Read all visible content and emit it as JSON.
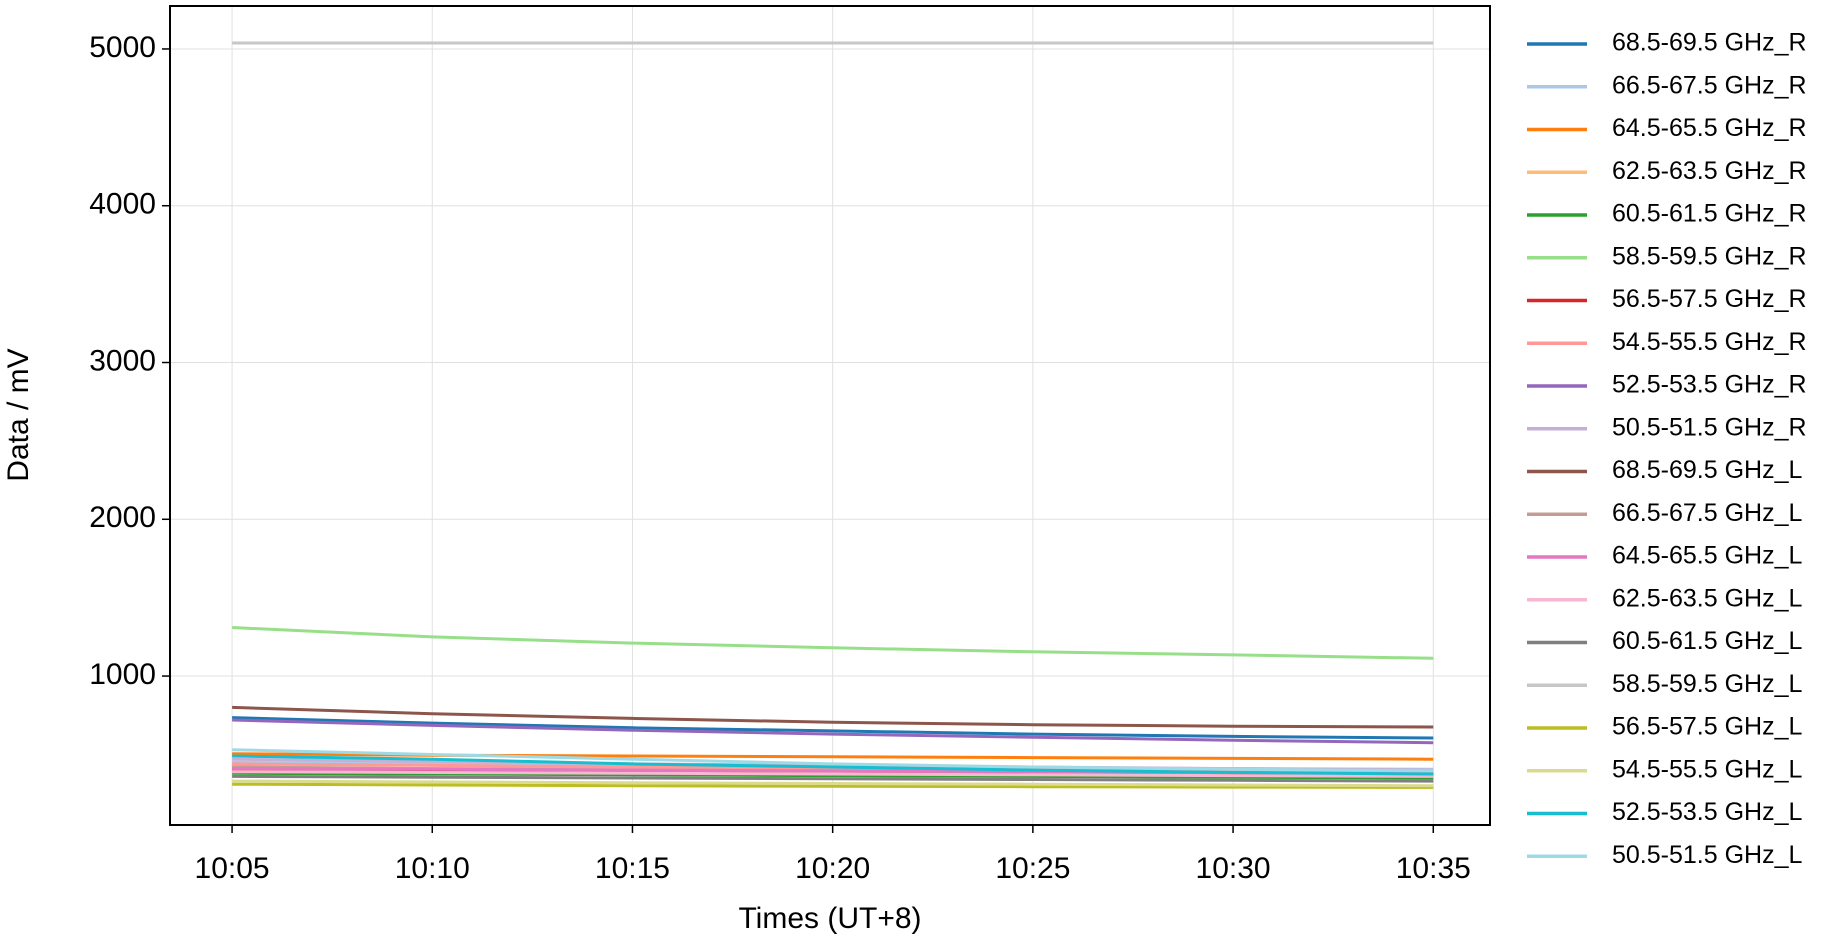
{
  "chart_data": {
    "type": "line",
    "x_label": "Times (UT+8)",
    "y_label": "Data / mV",
    "x": [
      "10:05",
      "10:10",
      "10:15",
      "10:20",
      "10:25",
      "10:30",
      "10:35"
    ],
    "xlim": [
      "10:03:27",
      "10:36:25"
    ],
    "xticks": [
      "10:05",
      "10:10",
      "10:15",
      "10:20",
      "10:25",
      "10:30",
      "10:35"
    ],
    "ylim": [
      50,
      5274
    ],
    "yticks": [
      1000,
      2000,
      3000,
      4000,
      5000
    ],
    "grid": true,
    "legend": "outside-right",
    "series": [
      {
        "name": "68.5-69.5 GHz_R",
        "color": "#1f77b4",
        "values": [
          735,
          700,
          670,
          650,
          630,
          615,
          605
        ]
      },
      {
        "name": "66.5-67.5 GHz_R",
        "color": "#aec7e8",
        "values": [
          450,
          440,
          430,
          420,
          415,
          410,
          405
        ]
      },
      {
        "name": "64.5-65.5 GHz_R",
        "color": "#ff7f0e",
        "values": [
          505,
          495,
          490,
          485,
          480,
          475,
          470
        ]
      },
      {
        "name": "62.5-63.5 GHz_R",
        "color": "#ffbb78",
        "values": [
          420,
          410,
          405,
          400,
          395,
          390,
          385
        ]
      },
      {
        "name": "60.5-61.5 GHz_R",
        "color": "#2ca02c",
        "values": [
          380,
          375,
          370,
          365,
          360,
          355,
          350
        ]
      },
      {
        "name": "58.5-59.5 GHz_R",
        "color": "#98df8a",
        "values": [
          1310,
          1250,
          1210,
          1180,
          1155,
          1135,
          1113
        ]
      },
      {
        "name": "56.5-57.5 GHz_R",
        "color": "#d62728",
        "values": [
          400,
          395,
          390,
          385,
          380,
          375,
          370
        ]
      },
      {
        "name": "54.5-55.5 GHz_R",
        "color": "#ff9896",
        "values": [
          440,
          430,
          420,
          410,
          405,
          400,
          395
        ]
      },
      {
        "name": "52.5-53.5 GHz_R",
        "color": "#9467bd",
        "values": [
          720,
          685,
          655,
          630,
          610,
          590,
          575
        ]
      },
      {
        "name": "50.5-51.5 GHz_R",
        "color": "#c5b0d5",
        "values": [
          470,
          455,
          440,
          430,
          420,
          410,
          400
        ]
      },
      {
        "name": "68.5-69.5 GHz_L",
        "color": "#8c564b",
        "values": [
          800,
          760,
          730,
          705,
          690,
          680,
          675
        ]
      },
      {
        "name": "66.5-67.5 GHz_L",
        "color": "#c49c94",
        "values": [
          420,
          410,
          400,
          395,
          390,
          385,
          380
        ]
      },
      {
        "name": "64.5-65.5 GHz_L",
        "color": "#e377c2",
        "values": [
          410,
          405,
          400,
          395,
          390,
          385,
          380
        ]
      },
      {
        "name": "62.5-63.5 GHz_L",
        "color": "#f7b6d2",
        "values": [
          390,
          385,
          380,
          375,
          370,
          365,
          360
        ]
      },
      {
        "name": "60.5-61.5 GHz_L",
        "color": "#7f7f7f",
        "values": [
          360,
          355,
          350,
          345,
          340,
          335,
          330
        ]
      },
      {
        "name": "58.5-59.5 GHz_L",
        "color": "#c7c7c7",
        "values": [
          5038,
          5038,
          5038,
          5038,
          5038,
          5038,
          5038
        ]
      },
      {
        "name": "56.5-57.5 GHz_L",
        "color": "#bcbd22",
        "values": [
          310,
          305,
          300,
          297,
          294,
          292,
          290
        ]
      },
      {
        "name": "54.5-55.5 GHz_L",
        "color": "#dbdb8d",
        "values": [
          330,
          325,
          320,
          315,
          310,
          305,
          300
        ]
      },
      {
        "name": "52.5-53.5 GHz_L",
        "color": "#17becf",
        "values": [
          490,
          470,
          440,
          420,
          400,
          385,
          375
        ]
      },
      {
        "name": "50.5-51.5 GHz_L",
        "color": "#9edae5",
        "values": [
          530,
          500,
          470,
          440,
          420,
          405,
          395
        ]
      }
    ]
  }
}
